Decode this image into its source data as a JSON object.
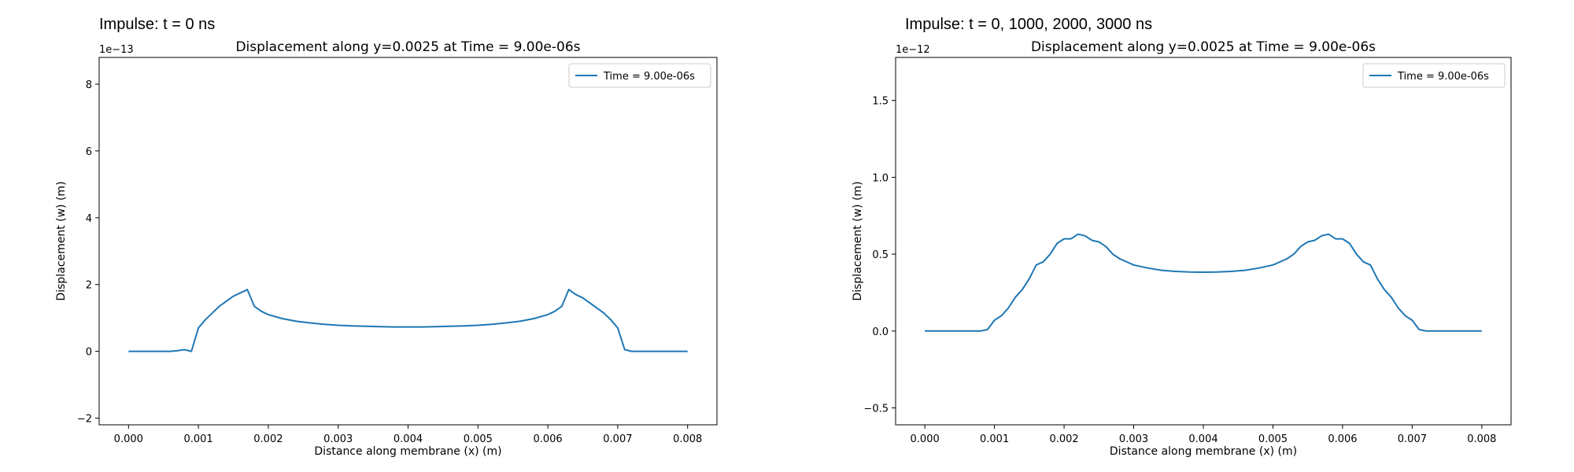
{
  "panels": {
    "left_title": "Impulse: t = 0 ns",
    "right_title": "Impulse: t = 0, 1000, 2000, 3000 ns"
  },
  "colors": {
    "series": "#1f77b4",
    "axes": "#000000"
  },
  "chart_data": [
    {
      "type": "line",
      "title": "Displacement along y=0.0025 at Time = 9.00e-06s",
      "xlabel": "Distance along membrane (x) (m)",
      "ylabel": "Displacement (w) (m)",
      "y_offset_label": "1e−13",
      "xlim": [
        -0.00042,
        0.00842
      ],
      "ylim": [
        -2.2,
        8.8
      ],
      "xticks": [
        0,
        0.001,
        0.002,
        0.003,
        0.004,
        0.005,
        0.006,
        0.007,
        0.008
      ],
      "xtick_labels": [
        "0.000",
        "0.001",
        "0.002",
        "0.003",
        "0.004",
        "0.005",
        "0.006",
        "0.007",
        "0.008"
      ],
      "yticks": [
        -2,
        0,
        2,
        4,
        6,
        8
      ],
      "ytick_labels": [
        "−2",
        "0",
        "2",
        "4",
        "6",
        "8"
      ],
      "grid": false,
      "legend_position": "top-right",
      "series": [
        {
          "name": "Time = 9.00e-06s",
          "x": [
            0,
            0.0002,
            0.0004,
            0.0006,
            0.0007,
            0.0008,
            0.0009,
            0.001,
            0.0011,
            0.0012,
            0.0013,
            0.0014,
            0.0015,
            0.0016,
            0.0017,
            0.0018,
            0.0019,
            0.002,
            0.0022,
            0.0024,
            0.0026,
            0.0028,
            0.003,
            0.0032,
            0.0034,
            0.0036,
            0.0038,
            0.004,
            0.0042,
            0.0044,
            0.0046,
            0.0048,
            0.005,
            0.0052,
            0.0054,
            0.0056,
            0.0058,
            0.006,
            0.0061,
            0.0062,
            0.0063,
            0.0064,
            0.0065,
            0.0066,
            0.0067,
            0.0068,
            0.0069,
            0.007,
            0.0071,
            0.0072,
            0.0074,
            0.0076,
            0.0078,
            0.008
          ],
          "y": [
            0,
            0,
            0,
            0,
            0.02,
            0.05,
            0,
            0.7,
            0.95,
            1.15,
            1.35,
            1.5,
            1.65,
            1.75,
            1.85,
            1.35,
            1.2,
            1.1,
            0.98,
            0.9,
            0.85,
            0.81,
            0.78,
            0.76,
            0.75,
            0.74,
            0.73,
            0.73,
            0.73,
            0.74,
            0.75,
            0.76,
            0.78,
            0.81,
            0.85,
            0.9,
            0.98,
            1.1,
            1.2,
            1.35,
            1.85,
            1.7,
            1.6,
            1.45,
            1.3,
            1.15,
            0.95,
            0.7,
            0.05,
            0,
            0,
            0,
            0,
            0
          ]
        }
      ]
    },
    {
      "type": "line",
      "title": "Displacement along y=0.0025 at Time = 9.00e-06s",
      "xlabel": "Distance along membrane (x) (m)",
      "ylabel": "Displacement (w) (m)",
      "y_offset_label": "1e−12",
      "xlim": [
        -0.00042,
        0.00842
      ],
      "ylim": [
        -0.61,
        1.78
      ],
      "xticks": [
        0,
        0.001,
        0.002,
        0.003,
        0.004,
        0.005,
        0.006,
        0.007,
        0.008
      ],
      "xtick_labels": [
        "0.000",
        "0.001",
        "0.002",
        "0.003",
        "0.004",
        "0.005",
        "0.006",
        "0.007",
        "0.008"
      ],
      "yticks": [
        -0.5,
        0,
        0.5,
        1,
        1.5
      ],
      "ytick_labels": [
        "−0.5",
        "0.0",
        "0.5",
        "1.0",
        "1.5"
      ],
      "grid": false,
      "legend_position": "top-right",
      "series": [
        {
          "name": "Time = 9.00e-06s",
          "x": [
            0,
            0.0002,
            0.0004,
            0.0006,
            0.0008,
            0.0009,
            0.001,
            0.0011,
            0.0012,
            0.0013,
            0.0014,
            0.0015,
            0.0016,
            0.0017,
            0.0018,
            0.0019,
            0.002,
            0.0021,
            0.0022,
            0.0023,
            0.0024,
            0.0025,
            0.0026,
            0.0027,
            0.0028,
            0.003,
            0.0032,
            0.0034,
            0.0036,
            0.0038,
            0.004,
            0.0042,
            0.0044,
            0.0046,
            0.0048,
            0.005,
            0.0052,
            0.0053,
            0.0054,
            0.0055,
            0.0056,
            0.0057,
            0.0058,
            0.0059,
            0.006,
            0.0061,
            0.0062,
            0.0063,
            0.0064,
            0.0065,
            0.0066,
            0.0067,
            0.0068,
            0.0069,
            0.007,
            0.0071,
            0.0072,
            0.0074,
            0.0076,
            0.0078,
            0.008
          ],
          "y": [
            0,
            0,
            0,
            0,
            0,
            0.01,
            0.07,
            0.1,
            0.15,
            0.22,
            0.27,
            0.34,
            0.43,
            0.45,
            0.5,
            0.57,
            0.6,
            0.6,
            0.63,
            0.62,
            0.59,
            0.58,
            0.55,
            0.5,
            0.47,
            0.43,
            0.41,
            0.395,
            0.388,
            0.384,
            0.383,
            0.384,
            0.388,
            0.395,
            0.41,
            0.43,
            0.47,
            0.5,
            0.55,
            0.58,
            0.59,
            0.62,
            0.63,
            0.6,
            0.6,
            0.57,
            0.5,
            0.45,
            0.43,
            0.34,
            0.27,
            0.22,
            0.15,
            0.1,
            0.07,
            0.01,
            0,
            0,
            0,
            0,
            0
          ]
        }
      ]
    }
  ]
}
